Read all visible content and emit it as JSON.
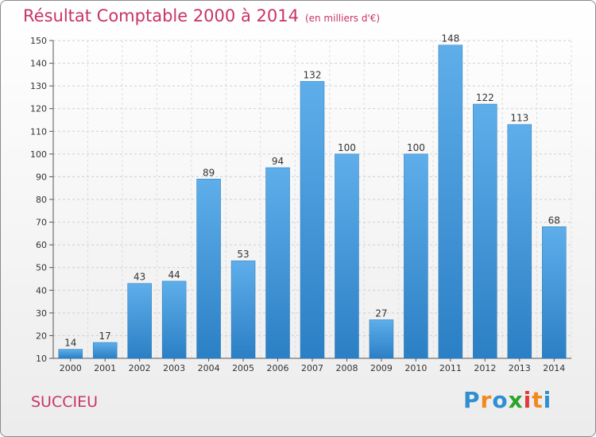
{
  "header": {
    "title": "Résultat Comptable 2000 à 2014",
    "unit": "(en milliers d'€)"
  },
  "footer": {
    "commune": "SUCCIEU",
    "logo_letters": [
      "P",
      "r",
      "o",
      "x",
      "i",
      "t",
      "i"
    ],
    "logo_colors": [
      "#2f8fd0",
      "#f08a1c",
      "#2f8fd0",
      "#2aa52a",
      "#e03a3a",
      "#f08a1c",
      "#2f8fd0"
    ]
  },
  "chart_data": {
    "type": "bar",
    "categories": [
      "2000",
      "2001",
      "2002",
      "2003",
      "2004",
      "2005",
      "2006",
      "2007",
      "2008",
      "2009",
      "2010",
      "2011",
      "2012",
      "2013",
      "2014"
    ],
    "values": [
      14,
      17,
      43,
      44,
      89,
      53,
      94,
      132,
      100,
      27,
      100,
      148,
      122,
      113,
      68
    ],
    "title": "Résultat Comptable 2000 à 2014",
    "xlabel": "",
    "ylabel": "",
    "ylim": [
      10,
      150
    ],
    "yticks": [
      10,
      20,
      30,
      40,
      50,
      60,
      70,
      80,
      90,
      100,
      110,
      120,
      130,
      140,
      150
    ],
    "grid": true,
    "bar_color": "#3d92d6"
  }
}
